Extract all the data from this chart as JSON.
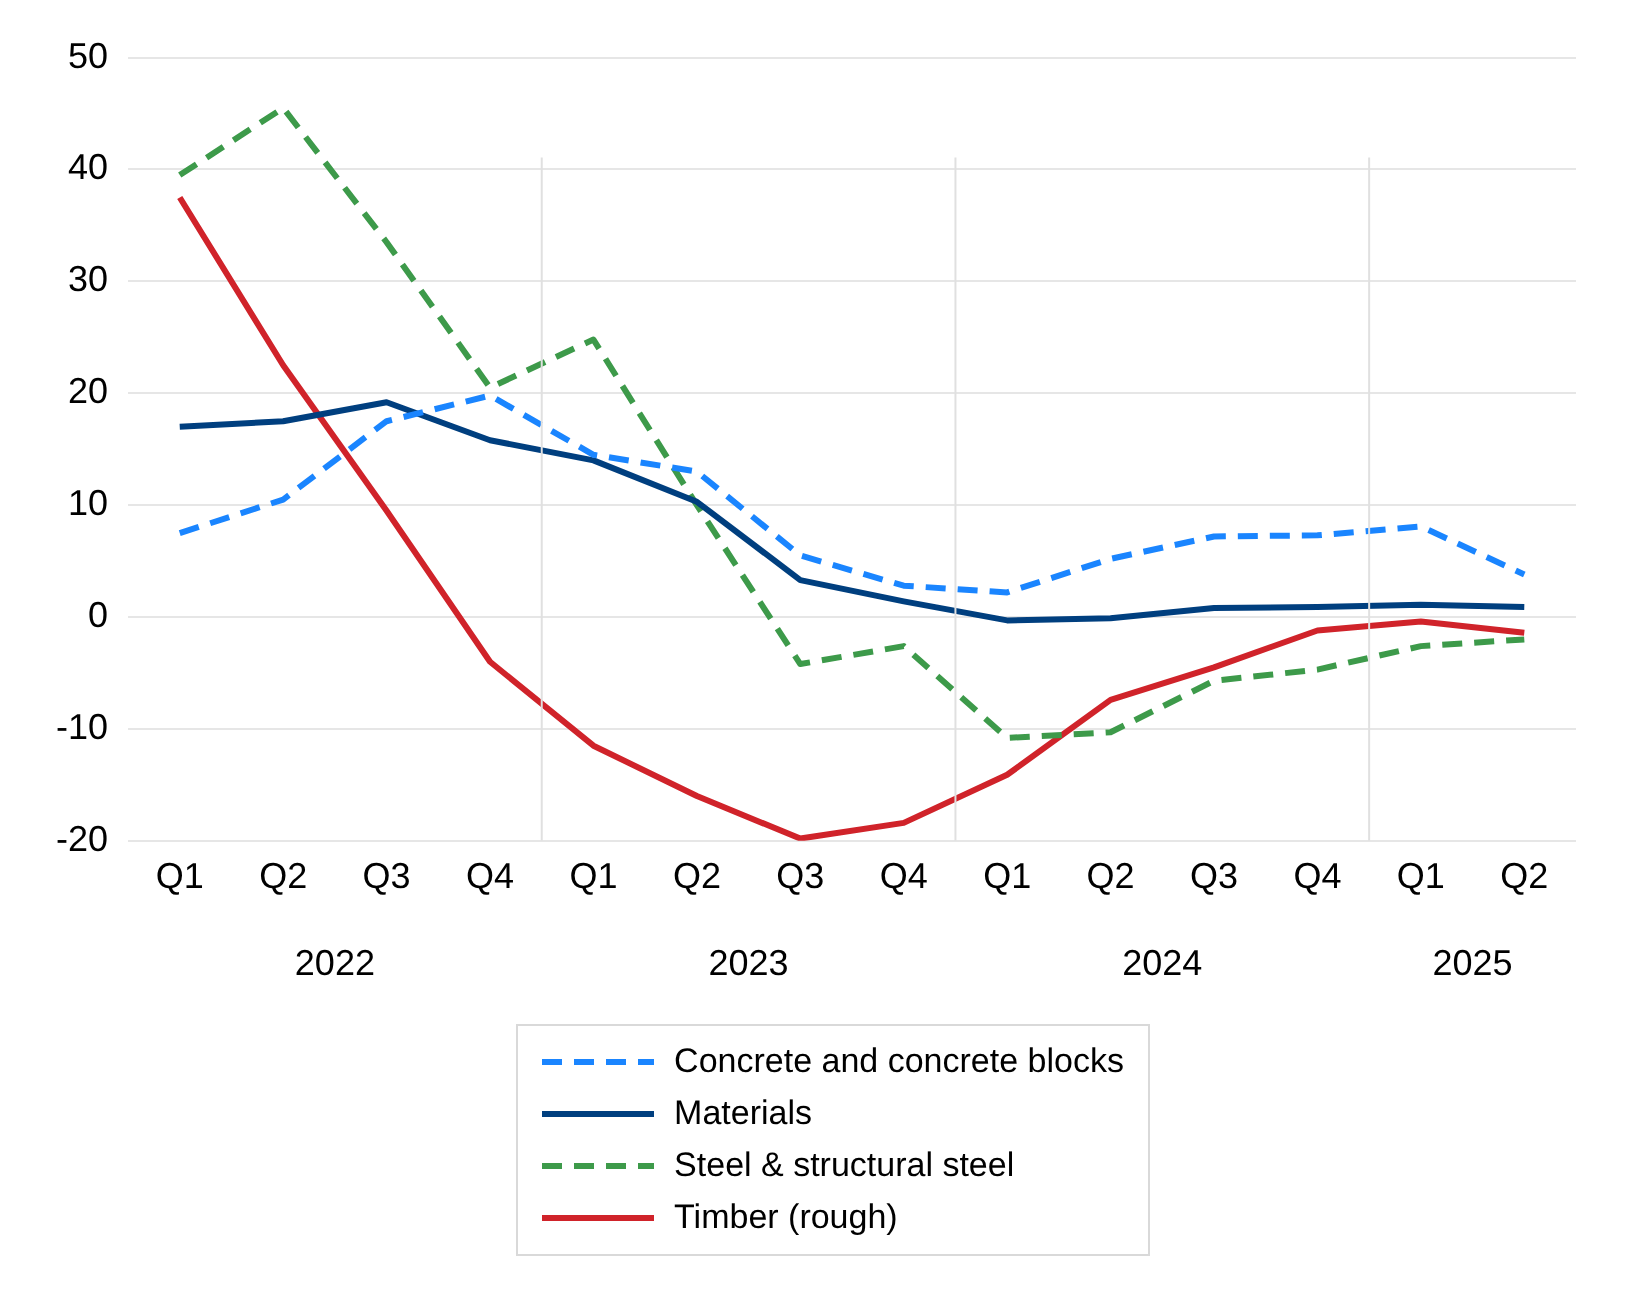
{
  "chart_data": {
    "type": "line",
    "categories": [
      "Q1",
      "Q2",
      "Q3",
      "Q4",
      "Q1",
      "Q2",
      "Q3",
      "Q4",
      "Q1",
      "Q2",
      "Q3",
      "Q4",
      "Q1",
      "Q2"
    ],
    "annotations": [
      "2022",
      "2023",
      "2024",
      "2025"
    ],
    "series": [
      {
        "name": "Concrete and concrete blocks",
        "color": "#1a85ff",
        "line_style": "dashed",
        "values": [
          7.5,
          10.5,
          17.5,
          19.8,
          14.5,
          13,
          5.5,
          2.8,
          2.2,
          5.2,
          7.2,
          7.3,
          8.1,
          3.8
        ]
      },
      {
        "name": "Materials",
        "color": "#003f7f",
        "line_style": "solid",
        "values": [
          17,
          17.5,
          19.2,
          15.8,
          14,
          10.3,
          3.3,
          1.4,
          -0.3,
          -0.1,
          0.8,
          0.9,
          1.1,
          0.9
        ]
      },
      {
        "name": "Steel & structural steel",
        "color": "#3d9a4a",
        "line_style": "dashed",
        "values": [
          39.5,
          45.5,
          33.5,
          20.5,
          24.8,
          10,
          -4.2,
          -2.6,
          -10.8,
          -10.3,
          -5.7,
          -4.7,
          -2.6,
          -2
        ]
      },
      {
        "name": "Timber (rough)",
        "color": "#d0232a",
        "line_style": "solid",
        "values": [
          37.5,
          22.5,
          9.5,
          -4,
          -11.5,
          -16,
          -19.8,
          -18.4,
          -14.1,
          -7.4,
          -4.5,
          -1.2,
          -0.4,
          -1.4
        ]
      }
    ],
    "ylim": [
      -20,
      50
    ],
    "yticks": [
      -20,
      -10,
      0,
      10,
      20,
      30,
      40,
      50
    ],
    "grid": "y",
    "legend": "bottom",
    "marker": "none"
  }
}
